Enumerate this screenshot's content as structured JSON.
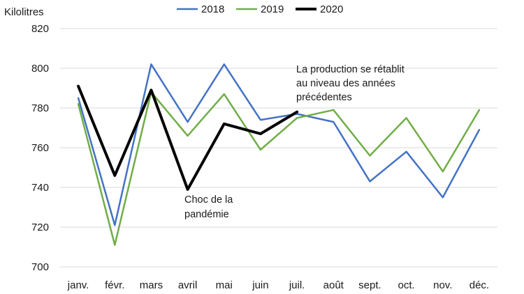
{
  "chart_data": {
    "type": "line",
    "title": "",
    "ylabel": "Kilolitres",
    "xlabel": "",
    "ylim": [
      700,
      820
    ],
    "yticks": [
      700,
      720,
      740,
      760,
      780,
      800,
      820
    ],
    "ytick_labels": [
      "700",
      "720",
      "740",
      "760",
      "780",
      "800",
      "820"
    ],
    "grid": true,
    "legend_position": "top",
    "categories": [
      "janv.",
      "févr.",
      "mars",
      "avril",
      "mai",
      "juin",
      "juil.",
      "août",
      "sept.",
      "oct.",
      "nov.",
      "déc."
    ],
    "series": [
      {
        "name": "2018",
        "color": "#4472c4",
        "values": [
          785,
          721,
          802,
          773,
          802,
          774,
          777,
          773,
          743,
          758,
          735,
          769
        ]
      },
      {
        "name": "2019",
        "color": "#70ad47",
        "values": [
          782,
          711,
          788,
          766,
          787,
          759,
          775,
          779,
          756,
          775,
          748,
          779
        ]
      },
      {
        "name": "2020",
        "color": "#000000",
        "values": [
          791,
          746,
          789,
          739,
          772,
          767,
          778,
          null,
          null,
          null,
          null,
          null
        ]
      }
    ],
    "annotations": [
      {
        "name": "annotation-recovery",
        "lines": [
          "La production se rétablit",
          "au niveau des années",
          "précédentes"
        ]
      },
      {
        "name": "annotation-shock",
        "lines": [
          "Choc de la",
          "pandémie"
        ]
      }
    ]
  }
}
